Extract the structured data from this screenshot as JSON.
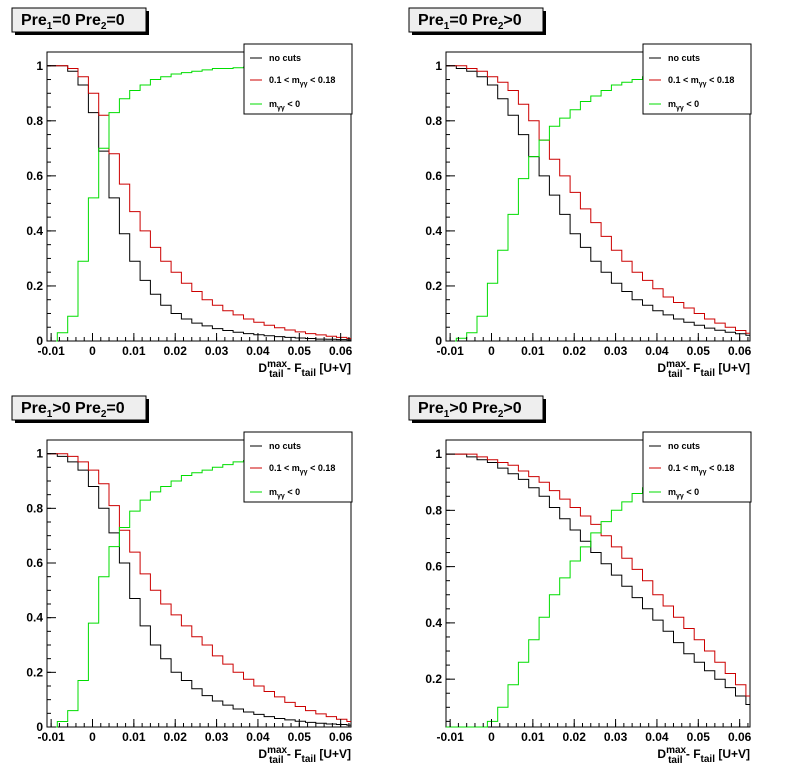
{
  "colors": {
    "no_cuts": "#000000",
    "mass_window": "#cc0000",
    "negative_mass": "#00dd00",
    "title_bg": "#eeeeee"
  },
  "legend": {
    "no_cuts": "no cuts",
    "mass_window_pre": "0.1 < m",
    "mass_window_sub": "γγ",
    "mass_window_post": " < 0.18",
    "negative_mass_pre": "m",
    "negative_mass_sub": "γγ",
    "negative_mass_post": " < 0"
  },
  "xaxis": {
    "label_main": "D",
    "label_sup": "max",
    "label_sub": "tail",
    "label_mid": " - F",
    "label_sub2": "tail",
    "label_end": " [U+V]",
    "ticks": [
      "-0.01",
      "0",
      "0.01",
      "0.02",
      "0.03",
      "0.04",
      "0.05",
      "0.06"
    ],
    "tick_values": [
      -0.01,
      0,
      0.01,
      0.02,
      0.03,
      0.04,
      0.05,
      0.06
    ],
    "range": [
      -0.011,
      0.0625
    ]
  },
  "chart_data": [
    {
      "type": "line",
      "title": {
        "p1": "Pre",
        "s1": "1",
        "c1": "=0  ",
        "p2": "Pre",
        "s2": "2",
        "c2": "=0"
      },
      "ylim": [
        0,
        1.05
      ],
      "yticks": [
        "0",
        "0.2",
        "0.4",
        "0.6",
        "0.8",
        "1"
      ],
      "ytick_values": [
        0,
        0.2,
        0.4,
        0.6,
        0.8,
        1
      ],
      "bin_start": -0.011,
      "bin_width": 0.0025,
      "series": [
        {
          "name": "no cuts",
          "values": [
            1.0,
            1.0,
            0.98,
            0.93,
            0.83,
            0.69,
            0.52,
            0.39,
            0.29,
            0.22,
            0.17,
            0.13,
            0.1,
            0.08,
            0.065,
            0.055,
            0.045,
            0.038,
            0.032,
            0.027,
            0.023,
            0.019,
            0.016,
            0.013,
            0.011,
            0.009,
            0.007,
            0.006,
            0.005,
            0.004
          ]
        },
        {
          "name": "0.1 < mγγ < 0.18",
          "values": [
            1.0,
            1.0,
            0.99,
            0.96,
            0.9,
            0.82,
            0.68,
            0.57,
            0.47,
            0.4,
            0.34,
            0.29,
            0.25,
            0.21,
            0.18,
            0.15,
            0.13,
            0.11,
            0.095,
            0.08,
            0.068,
            0.057,
            0.048,
            0.04,
            0.033,
            0.027,
            0.022,
            0.017,
            0.013,
            0.009
          ]
        },
        {
          "name": "mγγ < 0",
          "values": [
            0.0,
            0.03,
            0.09,
            0.29,
            0.52,
            0.7,
            0.83,
            0.88,
            0.91,
            0.93,
            0.95,
            0.96,
            0.97,
            0.975,
            0.98,
            0.985,
            0.99,
            0.99,
            0.993,
            0.995,
            0.996,
            0.997,
            0.998,
            0.999,
            1.0,
            1.0,
            1.0,
            1.0,
            1.0,
            1.0
          ]
        }
      ]
    },
    {
      "type": "line",
      "title": {
        "p1": "Pre",
        "s1": "1",
        "c1": "=0  ",
        "p2": "Pre",
        "s2": "2",
        "c2": ">0"
      },
      "ylim": [
        0,
        1.05
      ],
      "yticks": [
        "0",
        "0.2",
        "0.4",
        "0.6",
        "0.8",
        "1"
      ],
      "ytick_values": [
        0,
        0.2,
        0.4,
        0.6,
        0.8,
        1
      ],
      "bin_start": -0.011,
      "bin_width": 0.0025,
      "series": [
        {
          "name": "no cuts",
          "values": [
            1.0,
            0.99,
            0.98,
            0.96,
            0.93,
            0.88,
            0.82,
            0.75,
            0.67,
            0.6,
            0.53,
            0.46,
            0.39,
            0.34,
            0.29,
            0.25,
            0.21,
            0.18,
            0.15,
            0.13,
            0.11,
            0.095,
            0.08,
            0.068,
            0.057,
            0.047,
            0.039,
            0.032,
            0.026,
            0.021
          ]
        },
        {
          "name": "0.1 < mγγ < 0.18",
          "values": [
            1.0,
            1.0,
            0.99,
            0.98,
            0.96,
            0.94,
            0.91,
            0.86,
            0.8,
            0.73,
            0.66,
            0.6,
            0.54,
            0.48,
            0.43,
            0.38,
            0.33,
            0.29,
            0.25,
            0.22,
            0.19,
            0.16,
            0.14,
            0.12,
            0.1,
            0.08,
            0.065,
            0.05,
            0.038,
            0.028
          ]
        },
        {
          "name": "mγγ < 0",
          "values": [
            0.0,
            0.01,
            0.03,
            0.09,
            0.21,
            0.33,
            0.46,
            0.59,
            0.67,
            0.73,
            0.78,
            0.81,
            0.84,
            0.87,
            0.89,
            0.91,
            0.93,
            0.94,
            0.95,
            0.96,
            0.97,
            0.975,
            0.98,
            0.985,
            0.99,
            0.99,
            0.995,
            0.997,
            0.998,
            0.999
          ]
        }
      ]
    },
    {
      "type": "line",
      "title": {
        "p1": "Pre",
        "s1": "1",
        "c1": ">0  ",
        "p2": "Pre",
        "s2": "2",
        "c2": "=0"
      },
      "ylim": [
        0,
        1.05
      ],
      "yticks": [
        "0",
        "0.2",
        "0.4",
        "0.6",
        "0.8",
        "1"
      ],
      "ytick_values": [
        0,
        0.2,
        0.4,
        0.6,
        0.8,
        1
      ],
      "bin_start": -0.011,
      "bin_width": 0.0025,
      "series": [
        {
          "name": "no cuts",
          "values": [
            1.0,
            0.99,
            0.97,
            0.94,
            0.88,
            0.8,
            0.71,
            0.6,
            0.47,
            0.37,
            0.3,
            0.25,
            0.2,
            0.17,
            0.14,
            0.115,
            0.095,
            0.08,
            0.066,
            0.055,
            0.046,
            0.038,
            0.031,
            0.026,
            0.021,
            0.017,
            0.014,
            0.011,
            0.009,
            0.007
          ]
        },
        {
          "name": "0.1 < mγγ < 0.18",
          "values": [
            1.0,
            1.0,
            0.99,
            0.97,
            0.94,
            0.89,
            0.81,
            0.72,
            0.64,
            0.56,
            0.5,
            0.45,
            0.41,
            0.37,
            0.33,
            0.3,
            0.26,
            0.23,
            0.2,
            0.175,
            0.15,
            0.13,
            0.11,
            0.09,
            0.075,
            0.06,
            0.048,
            0.038,
            0.028,
            0.02
          ]
        },
        {
          "name": "mγγ < 0",
          "values": [
            0.0,
            0.02,
            0.06,
            0.17,
            0.38,
            0.55,
            0.66,
            0.73,
            0.79,
            0.83,
            0.86,
            0.88,
            0.9,
            0.92,
            0.93,
            0.94,
            0.95,
            0.96,
            0.97,
            0.975,
            0.98,
            0.985,
            0.99,
            0.99,
            0.995,
            0.997,
            0.998,
            0.999,
            1.0,
            1.0
          ]
        }
      ]
    },
    {
      "type": "line",
      "title": {
        "p1": "Pre",
        "s1": "1",
        "c1": ">0  ",
        "p2": "Pre",
        "s2": "2",
        "c2": ">0"
      },
      "ylim": [
        0.03,
        1.05
      ],
      "yticks": [
        "0.2",
        "0.4",
        "0.6",
        "0.8",
        "1"
      ],
      "ytick_values": [
        0.2,
        0.4,
        0.6,
        0.8,
        1
      ],
      "bin_start": -0.011,
      "bin_width": 0.0025,
      "series": [
        {
          "name": "no cuts",
          "values": [
            1.0,
            1.0,
            0.99,
            0.98,
            0.97,
            0.95,
            0.93,
            0.91,
            0.88,
            0.85,
            0.81,
            0.77,
            0.73,
            0.69,
            0.65,
            0.61,
            0.57,
            0.53,
            0.49,
            0.45,
            0.41,
            0.37,
            0.33,
            0.29,
            0.26,
            0.23,
            0.2,
            0.17,
            0.14,
            0.11
          ]
        },
        {
          "name": "0.1 < mγγ < 0.18",
          "values": [
            1.0,
            1.0,
            1.0,
            0.99,
            0.98,
            0.97,
            0.96,
            0.94,
            0.92,
            0.9,
            0.87,
            0.84,
            0.81,
            0.78,
            0.75,
            0.71,
            0.67,
            0.63,
            0.59,
            0.55,
            0.5,
            0.46,
            0.42,
            0.38,
            0.34,
            0.3,
            0.26,
            0.22,
            0.18,
            0.14
          ]
        },
        {
          "name": "mγγ < 0",
          "values": [
            0.03,
            0.03,
            0.03,
            0.03,
            0.05,
            0.1,
            0.18,
            0.26,
            0.34,
            0.42,
            0.5,
            0.56,
            0.62,
            0.67,
            0.72,
            0.76,
            0.8,
            0.83,
            0.86,
            0.88,
            0.9,
            0.92,
            0.94,
            0.95,
            0.96,
            0.97,
            0.98,
            0.985,
            0.99,
            0.995
          ]
        }
      ]
    }
  ]
}
